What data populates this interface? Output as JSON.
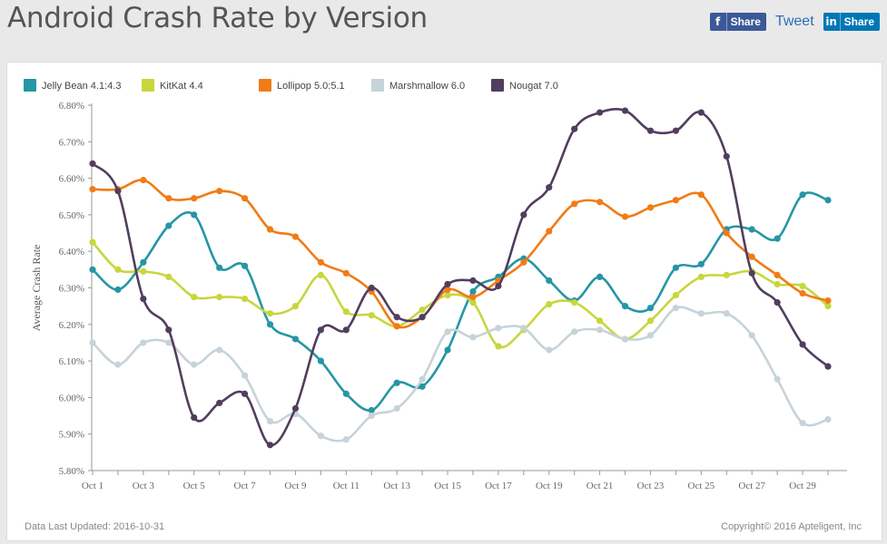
{
  "header": {
    "title": "Android Crash Rate by Version",
    "share_fb_label": "Share",
    "tweet_label": "Tweet",
    "share_li_label": "Share",
    "fb_icon": "facebook-icon",
    "li_icon": "linkedin-icon"
  },
  "footer": {
    "updated": "Data Last Updated: 2016-10-31",
    "copyright": "Copyright© 2016 Apteligent, Inc"
  },
  "chart_data": {
    "type": "line",
    "title": "",
    "xlabel": "",
    "ylabel": "Average Crash Rate",
    "ylim": [
      5.8,
      6.8
    ],
    "yticks": [
      "5.80%",
      "5.90%",
      "6.00%",
      "6.10%",
      "6.20%",
      "6.30%",
      "6.40%",
      "6.50%",
      "6.60%",
      "6.70%",
      "6.80%"
    ],
    "x": [
      "Oct 1",
      "Oct 2",
      "Oct 3",
      "Oct 4",
      "Oct 5",
      "Oct 6",
      "Oct 7",
      "Oct 8",
      "Oct 9",
      "Oct 10",
      "Oct 11",
      "Oct 12",
      "Oct 13",
      "Oct 14",
      "Oct 15",
      "Oct 16",
      "Oct 17",
      "Oct 18",
      "Oct 19",
      "Oct 20",
      "Oct 21",
      "Oct 22",
      "Oct 23",
      "Oct 24",
      "Oct 25",
      "Oct 26",
      "Oct 27",
      "Oct 28",
      "Oct 29",
      "Oct 30"
    ],
    "xtick_labels": [
      "Oct 1",
      "Oct 3",
      "Oct 5",
      "Oct 7",
      "Oct 9",
      "Oct 11",
      "Oct 13",
      "Oct 15",
      "Oct 17",
      "Oct 19",
      "Oct 21",
      "Oct 23",
      "Oct 25",
      "Oct 27",
      "Oct 29"
    ],
    "grid": false,
    "legend_position": "top",
    "series": [
      {
        "name": "Jelly Bean 4.1:4.3",
        "color": "#2596a5",
        "values": [
          6.35,
          6.295,
          6.37,
          6.47,
          6.5,
          6.355,
          6.36,
          6.2,
          6.16,
          6.1,
          6.01,
          5.965,
          6.04,
          6.03,
          6.13,
          6.29,
          6.33,
          6.38,
          6.32,
          6.265,
          6.33,
          6.25,
          6.245,
          6.355,
          6.365,
          6.46,
          6.46,
          6.435,
          6.555,
          6.54
        ]
      },
      {
        "name": "KitKat 4.4",
        "color": "#c8d63d",
        "values": [
          6.425,
          6.35,
          6.345,
          6.33,
          6.275,
          6.275,
          6.27,
          6.23,
          6.25,
          6.335,
          6.235,
          6.225,
          6.195,
          6.24,
          6.28,
          6.26,
          6.14,
          6.185,
          6.255,
          6.26,
          6.21,
          6.16,
          6.21,
          6.28,
          6.33,
          6.335,
          6.345,
          6.31,
          6.305,
          6.25
        ]
      },
      {
        "name": "Lollipop 5.0:5.1",
        "color": "#f07c16",
        "values": [
          6.57,
          6.57,
          6.595,
          6.545,
          6.545,
          6.565,
          6.545,
          6.46,
          6.44,
          6.37,
          6.34,
          6.29,
          6.195,
          6.22,
          6.295,
          6.275,
          6.32,
          6.37,
          6.455,
          6.53,
          6.535,
          6.495,
          6.52,
          6.54,
          6.555,
          6.45,
          6.385,
          6.335,
          6.285,
          6.265
        ]
      },
      {
        "name": "Marshmallow 6.0",
        "color": "#c6d3d9",
        "values": [
          6.15,
          6.09,
          6.15,
          6.15,
          6.09,
          6.13,
          6.06,
          5.935,
          5.955,
          5.895,
          5.885,
          5.95,
          5.97,
          6.05,
          6.18,
          6.165,
          6.19,
          6.19,
          6.13,
          6.18,
          6.185,
          6.16,
          6.17,
          6.245,
          6.23,
          6.23,
          6.17,
          6.05,
          5.93,
          5.94
        ]
      },
      {
        "name": "Nougat 7.0",
        "color": "#513e5e",
        "values": [
          6.64,
          6.565,
          6.27,
          6.185,
          5.945,
          5.985,
          6.01,
          5.87,
          5.97,
          6.185,
          6.185,
          6.3,
          6.22,
          6.22,
          6.31,
          6.32,
          6.305,
          6.5,
          6.575,
          6.735,
          6.78,
          6.785,
          6.73,
          6.73,
          6.78,
          6.66,
          6.34,
          6.26,
          6.145,
          6.085
        ]
      }
    ]
  }
}
